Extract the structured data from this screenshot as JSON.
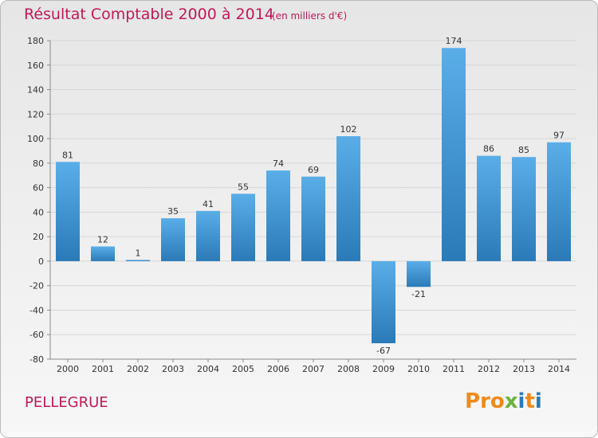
{
  "header": {
    "title": "Résultat Comptable 2000 à 2014",
    "subtitle": "(en milliers d'€)"
  },
  "footer": {
    "commune": "PELLEGRUE",
    "logo_text": "Proxiti"
  },
  "colors": {
    "title": "#c2185b",
    "bar_light": "#5aaee8",
    "bar_dark": "#2a7ab8",
    "grid": "#d6d6d6",
    "logo_letters": [
      "#f08a1a",
      "#f08a1a",
      "#f08a1a",
      "#6cb33e",
      "#2a7ab8",
      "#f08a1a",
      "#2a7ab8"
    ]
  },
  "chart_data": {
    "type": "bar",
    "title": "Résultat Comptable 2000 à 2014",
    "subtitle": "(en milliers d'€)",
    "xlabel": "",
    "ylabel": "",
    "categories": [
      "2000",
      "2001",
      "2002",
      "2003",
      "2004",
      "2005",
      "2006",
      "2007",
      "2008",
      "2009",
      "2010",
      "2011",
      "2012",
      "2013",
      "2014"
    ],
    "values": [
      81,
      12,
      1,
      35,
      41,
      55,
      74,
      69,
      102,
      -67,
      -21,
      174,
      86,
      85,
      97
    ],
    "value_labels": [
      "81",
      "12",
      "1",
      "35",
      "41",
      "55",
      "74",
      "69",
      "102",
      "-67",
      "-21",
      "174",
      "86",
      "85",
      "97"
    ],
    "ylim": [
      -80,
      180
    ],
    "yticks": [
      -80,
      -60,
      -40,
      -20,
      0,
      20,
      40,
      60,
      80,
      100,
      120,
      140,
      160,
      180
    ],
    "ytick_labels": [
      "-80",
      "-60",
      "-40",
      "-20",
      "0",
      "20",
      "40",
      "60",
      "80",
      "100",
      "120",
      "140",
      "160",
      "180"
    ],
    "grid": true,
    "legend": "none"
  }
}
